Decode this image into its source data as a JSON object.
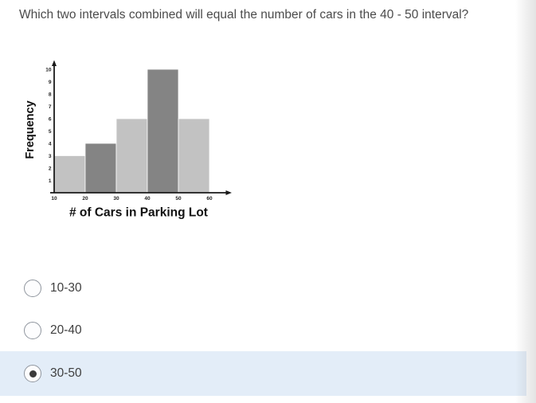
{
  "question": {
    "text": "Which two intervals combined will equal the number of cars in the 40 - 50 interval?"
  },
  "chart_data": {
    "type": "bar",
    "chart_kind": "histogram",
    "title": "",
    "xlabel": "# of Cars in Parking Lot",
    "ylabel": "Frequency",
    "categories": [
      "10-20",
      "20-30",
      "30-40",
      "40-50",
      "50-60"
    ],
    "values": [
      3,
      4,
      6,
      10,
      6
    ],
    "bar_colors": [
      "#c2c2c2",
      "#848484",
      "#c2c2c2",
      "#848484",
      "#c2c2c2"
    ],
    "x_tick_labels": [
      "10",
      "20",
      "30",
      "40",
      "50",
      "60"
    ],
    "y_tick_labels": [
      "1",
      "2",
      "3",
      "4",
      "5",
      "6",
      "7",
      "8",
      "9",
      "10"
    ],
    "ylim": [
      0,
      10
    ],
    "grid": false,
    "legend": "none"
  },
  "options": [
    {
      "label": "10-30",
      "selected": false
    },
    {
      "label": "20-40",
      "selected": false
    },
    {
      "label": "30-50",
      "selected": true
    }
  ],
  "colors": {
    "selected_row_bg": "#e3edf8",
    "bar_light": "#c2c2c2",
    "bar_dark": "#848484",
    "axis": "#1a1a1a",
    "question_text": "#4b4b4b",
    "option_text": "#3f3f3f",
    "radio_border": "#8f959e",
    "radio_dot": "#3a3a3a"
  }
}
